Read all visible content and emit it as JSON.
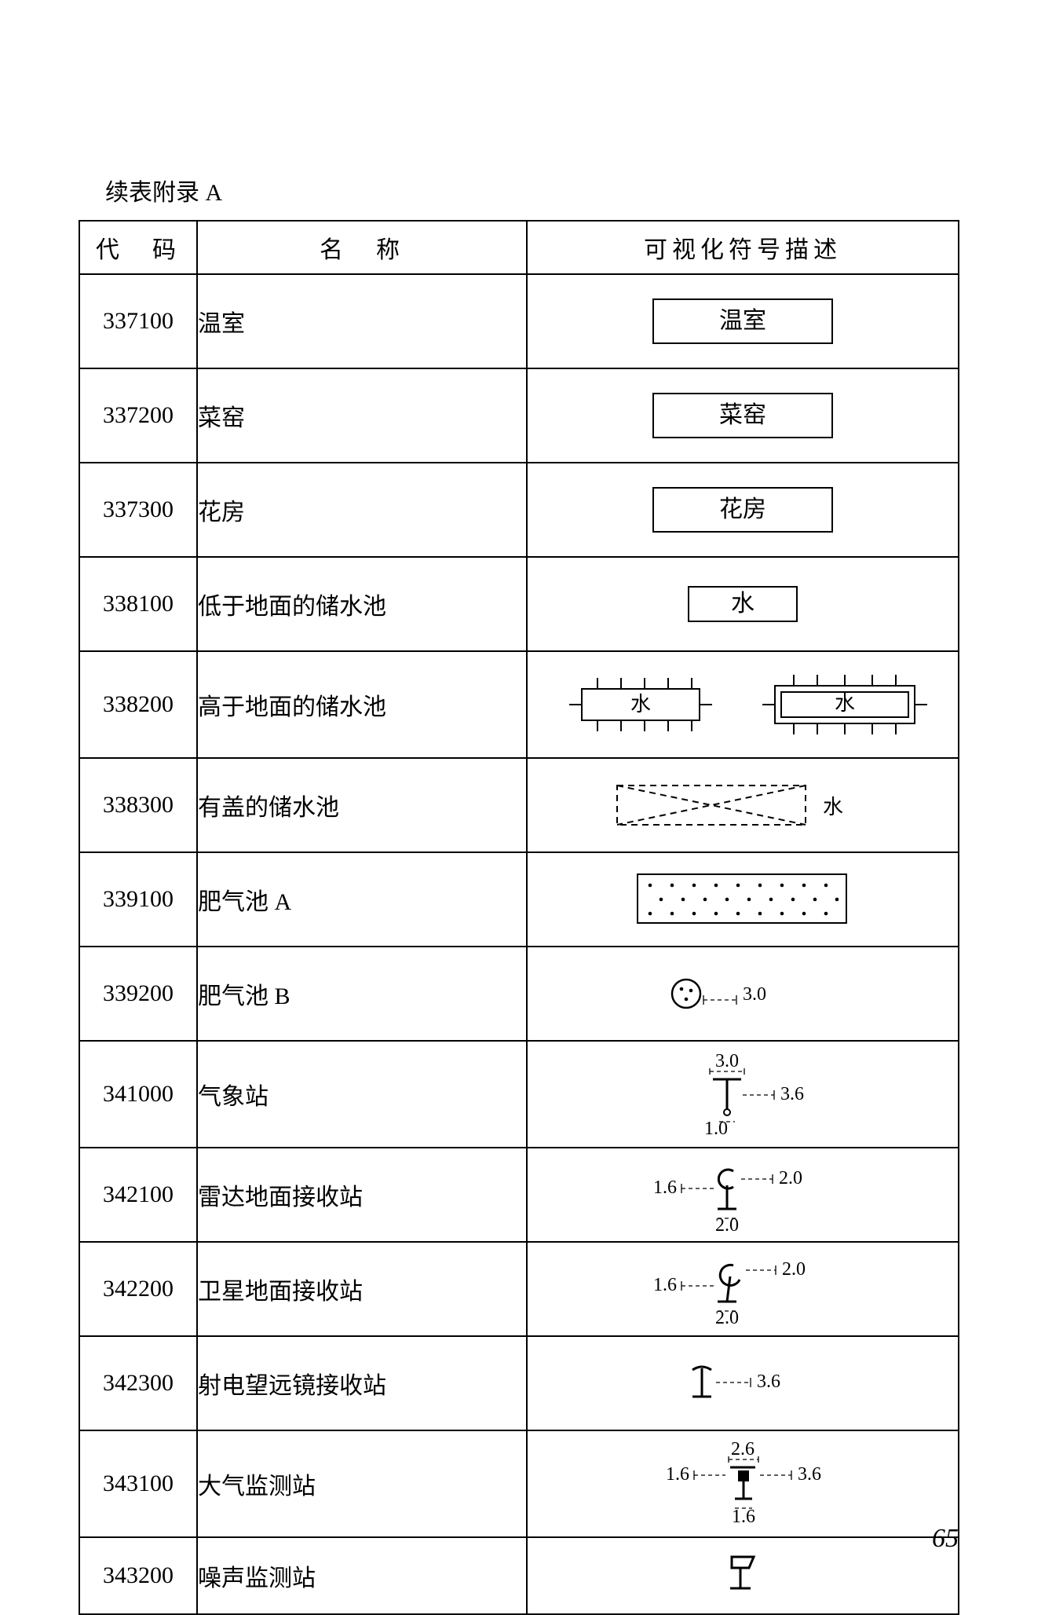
{
  "caption": "续表附录 A",
  "page_number": "65",
  "headers": {
    "code": "代　码",
    "name": "名　称",
    "symbol": "可视化符号描述"
  },
  "rows": [
    {
      "code": "337100",
      "name": "温室",
      "sym_type": "box_lg",
      "sym_text": "温室"
    },
    {
      "code": "337200",
      "name": "菜窑",
      "sym_type": "box_lg",
      "sym_text": "菜窑"
    },
    {
      "code": "337300",
      "name": "花房",
      "sym_type": "box_lg",
      "sym_text": "花房"
    },
    {
      "code": "338100",
      "name": "低于地面的储水池",
      "sym_type": "box_sm",
      "sym_text": "水"
    },
    {
      "code": "338200",
      "name": "高于地面的储水池",
      "sym_type": "above_ground",
      "sym_text": "水"
    },
    {
      "code": "338300",
      "name": "有盖的储水池",
      "sym_type": "covered",
      "sym_text": "水"
    },
    {
      "code": "339100",
      "name": "肥气池 A",
      "sym_type": "dots"
    },
    {
      "code": "339200",
      "name": "肥气池 B",
      "sym_type": "circle_dots",
      "dim1": "3.0"
    },
    {
      "code": "341000",
      "name": "气象站",
      "sym_type": "weather",
      "dim1": "3.0",
      "dim2": "3.6",
      "dim3": "1.0"
    },
    {
      "code": "342100",
      "name": "雷达地面接收站",
      "sym_type": "radar",
      "dim1": "1.6",
      "dim2": "2.0",
      "dim3": "2.0"
    },
    {
      "code": "342200",
      "name": "卫星地面接收站",
      "sym_type": "satellite",
      "dim1": "1.6",
      "dim2": "2.0",
      "dim3": "2.0"
    },
    {
      "code": "342300",
      "name": "射电望远镜接收站",
      "sym_type": "radio_tel",
      "dim1": "3.6"
    },
    {
      "code": "343100",
      "name": "大气监测站",
      "sym_type": "air_mon",
      "dim1": "1.6",
      "dim2": "2.6",
      "dim3": "3.6",
      "dim4": "1.6"
    },
    {
      "code": "343200",
      "name": "噪声监测站",
      "sym_type": "noise"
    }
  ]
}
